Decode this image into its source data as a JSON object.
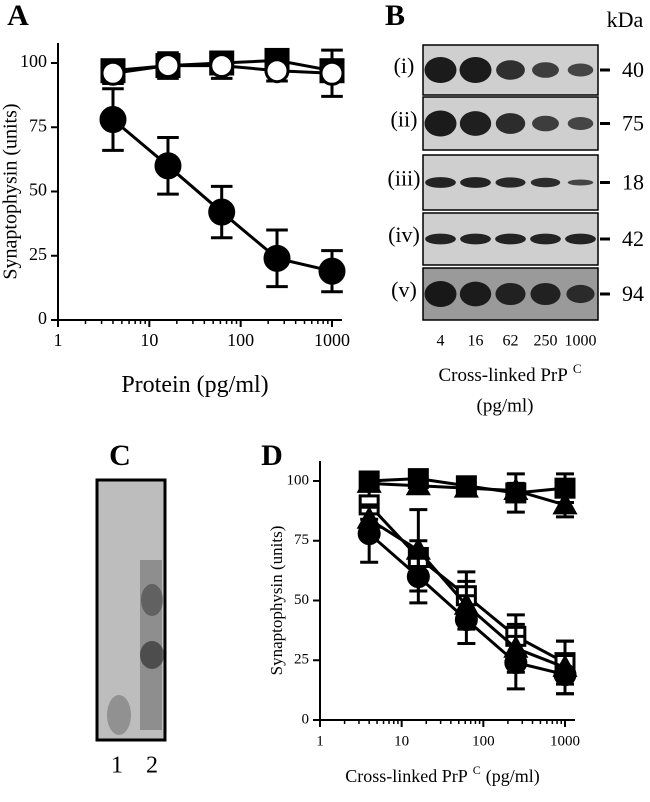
{
  "chart_data": [
    {
      "type": "line",
      "panel": "A",
      "xlabel": "Protein (pg/ml)",
      "ylabel": "Synaptophysin (units)",
      "xlog": true,
      "xlim": [
        1,
        1000
      ],
      "xticks": [
        1,
        10,
        100,
        1000
      ],
      "ylim": [
        0,
        100
      ],
      "yticks": [
        0,
        25,
        50,
        75,
        100
      ],
      "x": [
        4,
        16,
        62,
        250,
        1000
      ],
      "series": [
        {
          "marker": "square",
          "color": "#000",
          "values": [
            97,
            99,
            100,
            101,
            97
          ],
          "errors": [
            3,
            3,
            3,
            2,
            3
          ]
        },
        {
          "marker": "open-circle",
          "color": "#000",
          "values": [
            96,
            99,
            99,
            97,
            96
          ],
          "errors": [
            4,
            5,
            5,
            4,
            9
          ]
        },
        {
          "marker": "circle",
          "color": "#000",
          "values": [
            78,
            60,
            42,
            24,
            19
          ],
          "errors": [
            12,
            11,
            10,
            11,
            8
          ]
        }
      ]
    },
    {
      "type": "blot",
      "panel": "B",
      "unit": "kDa",
      "rows": [
        "(i)",
        "(ii)",
        "(iii)",
        "(iv)",
        "(v)"
      ],
      "weights": [
        "40",
        "75",
        "18",
        "42",
        "94"
      ],
      "lanes": [
        "4",
        "16",
        "62",
        "250",
        "1000"
      ],
      "xlabel": "Cross-linked PrP",
      "xlabel_sup": "C",
      "xlabel_unit": "(pg/ml)"
    },
    {
      "type": "gel",
      "panel": "C",
      "lanes": [
        "1",
        "2"
      ]
    },
    {
      "type": "line",
      "panel": "D",
      "xlabel": "Cross-linked PrP",
      "xlabel_sup": "C",
      "xlabel_unit": "(pg/ml)",
      "ylabel": "Synaptophysin (units)",
      "xlog": true,
      "xlim": [
        1,
        1000
      ],
      "xticks": [
        1,
        10,
        100,
        1000
      ],
      "ylim": [
        0,
        100
      ],
      "yticks": [
        0,
        25,
        50,
        75,
        100
      ],
      "x": [
        4,
        16,
        62,
        250,
        1000
      ],
      "series": [
        {
          "marker": "square",
          "color": "#000",
          "values": [
            100,
            101,
            98,
            95,
            97
          ],
          "errors": [
            3,
            3,
            3,
            8,
            6
          ]
        },
        {
          "marker": "triangle",
          "color": "#000",
          "values": [
            99,
            98,
            97,
            96,
            90
          ],
          "errors": [
            3,
            3,
            3,
            3,
            5
          ]
        },
        {
          "marker": "open-square",
          "color": "#000",
          "values": [
            90,
            68,
            52,
            35,
            24
          ],
          "errors": [
            6,
            7,
            10,
            9,
            9
          ]
        },
        {
          "marker": "triangle",
          "color": "#000",
          "values": [
            84,
            71,
            48,
            30,
            22
          ],
          "errors": [
            5,
            17,
            10,
            10,
            11
          ]
        },
        {
          "marker": "circle",
          "color": "#000",
          "values": [
            78,
            60,
            42,
            24,
            19
          ],
          "errors": [
            12,
            11,
            10,
            11,
            8
          ]
        }
      ]
    }
  ]
}
